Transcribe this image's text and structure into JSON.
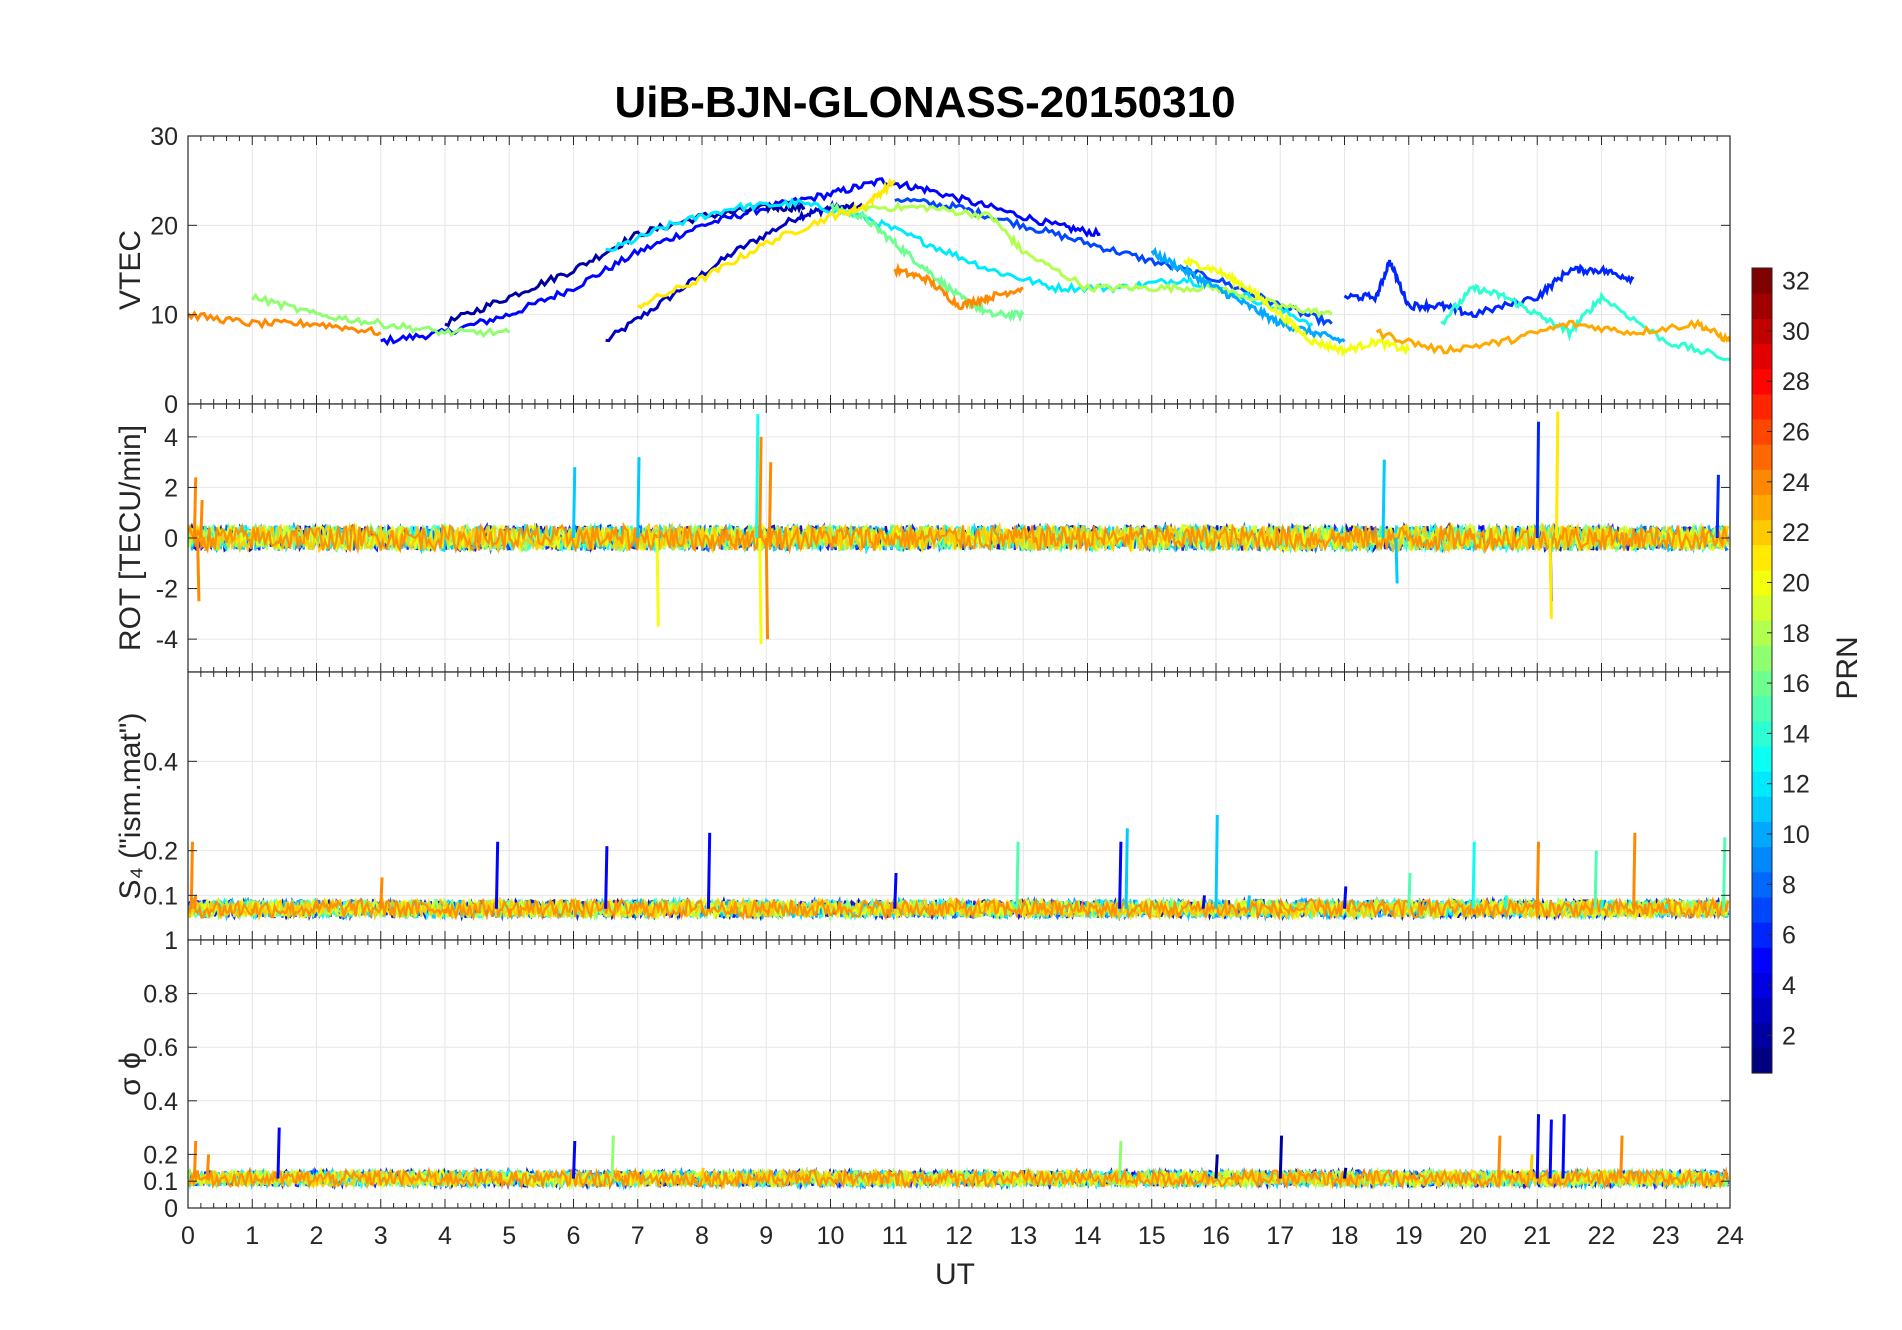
{
  "title": "UiB-BJN-GLONASS-20150310",
  "xlabel": "UT",
  "colorbar": {
    "label": "PRN",
    "colormap": "jet",
    "min": 1,
    "max": 32,
    "ticks": [
      2,
      4,
      6,
      8,
      10,
      12,
      14,
      16,
      18,
      20,
      22,
      24,
      26,
      28,
      30,
      32
    ]
  },
  "chart_data": [
    {
      "type": "line",
      "ylabel": "VTEC",
      "xlim": [
        0,
        24
      ],
      "ylim": [
        0,
        30
      ],
      "xticks": [
        0,
        1,
        2,
        3,
        4,
        5,
        6,
        7,
        8,
        9,
        10,
        11,
        12,
        13,
        14,
        15,
        16,
        17,
        18,
        19,
        20,
        21,
        22,
        23,
        24
      ],
      "yticks": [
        0,
        10,
        20,
        30
      ],
      "grid": true,
      "series": [
        {
          "prn": 3,
          "x": [
            6.5,
            7.5,
            8.5,
            9.5,
            10.0,
            10.5
          ],
          "y": [
            7,
            12,
            17,
            21,
            22,
            22
          ]
        },
        {
          "prn": 5,
          "x": [
            3.0,
            4.0,
            5.0,
            6.0,
            7.0,
            8.0,
            9.0,
            10.0,
            10.8,
            11.5,
            12.5,
            13.5,
            14.2
          ],
          "y": [
            7,
            8,
            10,
            13,
            17,
            20,
            22,
            23.5,
            25,
            24,
            22,
            20,
            19
          ]
        },
        {
          "prn": 2,
          "x": [
            4.0,
            5.0,
            6.0,
            7.0,
            8.0,
            9.0,
            9.6
          ],
          "y": [
            9,
            12,
            15,
            19,
            21,
            22,
            22
          ]
        },
        {
          "prn": 7,
          "x": [
            11.0,
            12.0,
            13.0,
            14.0,
            15.0,
            16.0,
            17.0,
            17.8
          ],
          "y": [
            23,
            22,
            20,
            18,
            16,
            14,
            11,
            9
          ]
        },
        {
          "prn": 12,
          "x": [
            6.5,
            7.5,
            8.5,
            9.5,
            10.5,
            11.5,
            12.5,
            13.5,
            14.5,
            15.5,
            16.5,
            17.5
          ],
          "y": [
            17,
            20,
            22,
            22.5,
            21,
            18,
            15,
            13,
            13,
            14,
            12,
            9
          ]
        },
        {
          "prn": 16,
          "x": [
            10.0,
            10.5,
            11.0,
            11.5,
            12.0,
            12.5,
            13.0
          ],
          "y": [
            22,
            21,
            18,
            15,
            12,
            10,
            10
          ]
        },
        {
          "prn": 18,
          "x": [
            10.5,
            11.5,
            12.5,
            13.0,
            14.0,
            15.0,
            16.0,
            17.0,
            17.8
          ],
          "y": [
            22,
            22,
            21,
            17,
            13,
            13,
            13,
            11,
            10
          ]
        },
        {
          "prn": 21,
          "x": [
            7.0,
            8.0,
            9.0,
            10.0,
            10.5,
            11.0
          ],
          "y": [
            11,
            14,
            18,
            21,
            22,
            25
          ]
        },
        {
          "prn": 24,
          "x": [
            11.0,
            11.5,
            12.0,
            12.5,
            13.0
          ],
          "y": [
            15,
            14,
            11,
            12,
            13
          ]
        },
        {
          "prn": 24,
          "x": [
            0.0,
            1.0,
            2.0,
            3.0
          ],
          "y": [
            10,
            9,
            9,
            8
          ]
        },
        {
          "prn": 10,
          "x": [
            15.0,
            15.5,
            16.0,
            16.5,
            17.0,
            17.5,
            18.0
          ],
          "y": [
            17,
            15,
            13,
            11,
            9,
            8,
            7
          ]
        },
        {
          "prn": 20,
          "x": [
            15.5,
            16.0,
            16.5,
            17.0,
            17.5,
            18.0,
            18.5,
            19.0
          ],
          "y": [
            16,
            15,
            13,
            10,
            7,
            6,
            7,
            6
          ]
        },
        {
          "prn": 6,
          "x": [
            18.0,
            18.5,
            18.7,
            19.0,
            19.5,
            20.0,
            21.0,
            21.5,
            22.0,
            22.5
          ],
          "y": [
            12,
            12,
            16,
            11,
            11,
            10,
            12,
            15,
            15,
            14
          ]
        },
        {
          "prn": 14,
          "x": [
            19.5,
            20.0,
            20.5,
            21.0,
            21.5,
            22.0,
            23.0,
            24.0
          ],
          "y": [
            9,
            13,
            12,
            10,
            8,
            12,
            7,
            5
          ]
        },
        {
          "prn": 23,
          "x": [
            18.5,
            19.5,
            20.5,
            21.5,
            22.5,
            23.5,
            24.0
          ],
          "y": [
            8,
            6,
            7,
            9,
            8,
            9,
            7
          ]
        },
        {
          "prn": 17,
          "x": [
            1.0,
            2.0,
            3.0,
            4.0,
            5.0
          ],
          "y": [
            12,
            10,
            9,
            8,
            8
          ]
        }
      ]
    },
    {
      "type": "line",
      "ylabel": "ROT [TECU/min]",
      "xlim": [
        0,
        24
      ],
      "ylim": [
        -5.3,
        5.3
      ],
      "yticks": [
        -4,
        -2,
        0,
        2,
        4
      ],
      "grid": true,
      "note_series": "scatter around zero with bursts",
      "series": [
        {
          "prn": 24,
          "x": [
            0.1,
            0.15,
            0.2,
            8.9,
            9.0,
            9.05
          ],
          "y": [
            2.4,
            -2.5,
            1.5,
            4.0,
            -4.0,
            3.0
          ]
        },
        {
          "prn": 13,
          "x": [
            8.85
          ],
          "y": [
            4.9
          ]
        },
        {
          "prn": 20,
          "x": [
            7.3,
            8.9
          ],
          "y": [
            -3.5,
            -4.2
          ]
        },
        {
          "prn": 11,
          "x": [
            6.0,
            7.0,
            18.6,
            18.8
          ],
          "y": [
            2.8,
            3.2,
            3.1,
            -1.8
          ]
        },
        {
          "prn": 6,
          "x": [
            21.0,
            21.2,
            23.8
          ],
          "y": [
            4.6,
            -2.5,
            2.5
          ]
        },
        {
          "prn": 21,
          "x": [
            21.3,
            21.2
          ],
          "y": [
            5.0,
            -3.2
          ]
        }
      ]
    },
    {
      "type": "line",
      "ylabel": "S₄ (\"ism.mat\")",
      "xlim": [
        0,
        24
      ],
      "ylim": [
        0,
        0.6
      ],
      "yticks": [
        0.1,
        0.2,
        0.4
      ],
      "grid": true,
      "series": [
        {
          "prn": 24,
          "x": [
            0.05,
            0.1,
            0.5,
            1.0,
            2.0,
            3.0,
            4.0,
            5.0,
            8.0,
            12.0,
            17.0,
            20.0,
            21.0,
            22.5,
            23.0,
            24.0
          ],
          "y": [
            0.22,
            0.1,
            0.07,
            0.06,
            0.08,
            0.14,
            0.06,
            0.05,
            0.06,
            0.07,
            0.06,
            0.06,
            0.22,
            0.24,
            0.06,
            0.07
          ]
        },
        {
          "prn": 5,
          "x": [
            4.8,
            6.5,
            8.1,
            11.0,
            14.5,
            15.8,
            18.0
          ],
          "y": [
            0.22,
            0.21,
            0.24,
            0.15,
            0.22,
            0.1,
            0.12
          ]
        },
        {
          "prn": 11,
          "x": [
            14.6,
            16.0,
            16.5
          ],
          "y": [
            0.25,
            0.28,
            0.1
          ]
        },
        {
          "prn": 15,
          "x": [
            12.9,
            19.0,
            21.9,
            23.9
          ],
          "y": [
            0.22,
            0.15,
            0.2,
            0.23
          ]
        },
        {
          "prn": 13,
          "x": [
            20.0,
            20.5,
            22.0,
            23.0
          ],
          "y": [
            0.22,
            0.1,
            0.09,
            0.08
          ]
        }
      ]
    },
    {
      "type": "line",
      "ylabel": "σ ϕ",
      "xlim": [
        0,
        24
      ],
      "ylim": [
        0,
        1
      ],
      "yticks": [
        0,
        0.1,
        0.2,
        0.4,
        0.6,
        0.8,
        1
      ],
      "grid": true,
      "series": [
        {
          "prn": 5,
          "x": [
            1.4,
            6.0,
            21.0,
            21.2,
            21.4
          ],
          "y": [
            0.3,
            0.25,
            0.35,
            0.33,
            0.35
          ]
        },
        {
          "prn": 2,
          "x": [
            16.0,
            17.0,
            18.0
          ],
          "y": [
            0.2,
            0.27,
            0.15
          ]
        },
        {
          "prn": 17,
          "x": [
            6.6,
            14.5
          ],
          "y": [
            0.27,
            0.25
          ]
        },
        {
          "prn": 24,
          "x": [
            0.1,
            0.3,
            20.4,
            22.3
          ],
          "y": [
            0.25,
            0.2,
            0.27,
            0.27
          ]
        },
        {
          "prn": 22,
          "x": [
            8.0,
            20.9
          ],
          "y": [
            0.15,
            0.2
          ]
        }
      ]
    }
  ]
}
